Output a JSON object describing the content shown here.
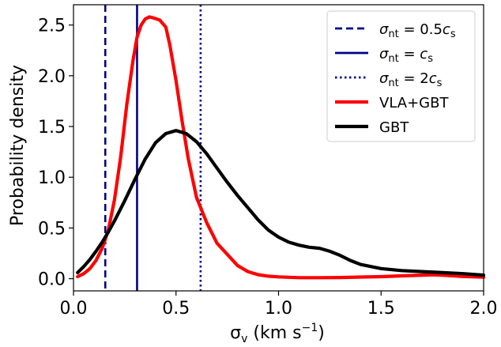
{
  "chart_data": {
    "type": "line",
    "xlabel": "σ",
    "xlabel_sub": "v",
    "xlabel_units_pre": " (km s",
    "xlabel_units_sup": "−1",
    "xlabel_units_post": ")",
    "ylabel": "Probability density",
    "xlim": [
      0.0,
      2.0
    ],
    "ylim": [
      -0.12,
      2.7
    ],
    "xticks": [
      0.0,
      0.5,
      1.0,
      1.5,
      2.0
    ],
    "xtick_labels": [
      "0.0",
      "0.5",
      "1.0",
      "1.5",
      "2.0"
    ],
    "yticks": [
      0.0,
      0.5,
      1.0,
      1.5,
      2.0,
      2.5
    ],
    "ytick_labels": [
      "0.0",
      "0.5",
      "1.0",
      "1.5",
      "2.0",
      "2.5"
    ],
    "grid": false,
    "legend_position": "top-right",
    "vlines": [
      {
        "x": 0.155,
        "color": "#00008b",
        "style": "dashed",
        "label": "σ_nt = 0.5c_s"
      },
      {
        "x": 0.31,
        "color": "#00008b",
        "style": "solid",
        "label": "σ_nt = c_s"
      },
      {
        "x": 0.62,
        "color": "#00008b",
        "style": "dotted",
        "label": "σ_nt = 2c_s"
      }
    ],
    "series": [
      {
        "name": "VLA+GBT",
        "color": "#ff0000",
        "x": [
          0.02,
          0.05,
          0.08,
          0.11,
          0.14,
          0.17,
          0.2,
          0.23,
          0.26,
          0.29,
          0.31,
          0.33,
          0.35,
          0.37,
          0.39,
          0.42,
          0.45,
          0.47,
          0.5,
          0.53,
          0.56,
          0.6,
          0.65,
          0.7,
          0.75,
          0.8,
          0.85,
          0.9,
          0.95,
          1.0,
          1.1,
          1.2,
          1.3,
          1.4,
          1.5,
          1.6,
          1.7,
          1.75,
          1.8,
          1.9,
          2.0
        ],
        "y": [
          0.02,
          0.05,
          0.1,
          0.18,
          0.3,
          0.48,
          0.78,
          1.2,
          1.72,
          2.15,
          2.38,
          2.5,
          2.56,
          2.58,
          2.57,
          2.55,
          2.48,
          2.3,
          1.95,
          1.55,
          1.18,
          0.8,
          0.55,
          0.35,
          0.24,
          0.13,
          0.07,
          0.04,
          0.025,
          0.018,
          0.01,
          0.01,
          0.012,
          0.016,
          0.02,
          0.028,
          0.035,
          0.038,
          0.035,
          0.022,
          0.015
        ]
      },
      {
        "name": "GBT",
        "color": "#000000",
        "x": [
          0.02,
          0.05,
          0.08,
          0.11,
          0.14,
          0.17,
          0.2,
          0.25,
          0.3,
          0.35,
          0.4,
          0.45,
          0.5,
          0.55,
          0.6,
          0.65,
          0.7,
          0.75,
          0.8,
          0.85,
          0.9,
          0.95,
          1.0,
          1.05,
          1.1,
          1.15,
          1.2,
          1.25,
          1.3,
          1.35,
          1.4,
          1.5,
          1.6,
          1.7,
          1.8,
          1.9,
          2.0
        ],
        "y": [
          0.06,
          0.12,
          0.19,
          0.27,
          0.36,
          0.46,
          0.57,
          0.77,
          0.98,
          1.18,
          1.34,
          1.43,
          1.46,
          1.43,
          1.35,
          1.23,
          1.09,
          0.95,
          0.82,
          0.7,
          0.58,
          0.48,
          0.41,
          0.36,
          0.33,
          0.31,
          0.3,
          0.27,
          0.23,
          0.18,
          0.14,
          0.1,
          0.08,
          0.07,
          0.06,
          0.05,
          0.035
        ]
      }
    ],
    "legend": [
      {
        "kind": "dashed",
        "color": "#00008b",
        "sym": "σ",
        "sub": "nt",
        "rest": " = 0.5",
        "c": "c",
        "csub": "s"
      },
      {
        "kind": "solid-thin",
        "color": "#00008b",
        "sym": "σ",
        "sub": "nt",
        "rest": " = ",
        "c": "c",
        "csub": "s"
      },
      {
        "kind": "dotted",
        "color": "#00008b",
        "sym": "σ",
        "sub": "nt",
        "rest": " = 2",
        "c": "c",
        "csub": "s"
      },
      {
        "kind": "solid-thick",
        "color": "#ff0000",
        "text": "VLA+GBT"
      },
      {
        "kind": "solid-thick",
        "color": "#000000",
        "text": "GBT"
      }
    ]
  }
}
